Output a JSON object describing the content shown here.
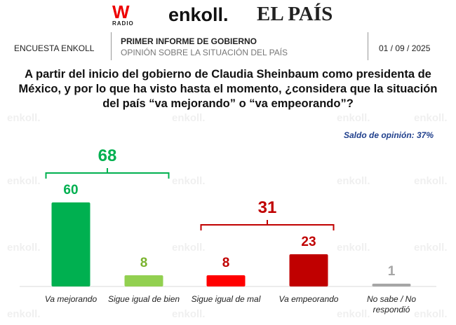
{
  "header": {
    "logos": {
      "wradio": "W",
      "wradio_sub": "RADIO",
      "enkoll": "enkoll.",
      "elpais": "EL PAÍS"
    },
    "left": "ENCUESTA ENKOLL",
    "title": "PRIMER INFORME DE GOBIERNO",
    "subtitle": "OPINIÓN SOBRE LA SITUACIÓN DEL PAÍS",
    "date": "01 / 09 / 2025"
  },
  "question": "A partir del inicio del gobierno de Claudia Sheinbaum como presidenta de México, y por lo que ha visto hasta el momento, ¿considera que la situación del país “va mejorando” o “va empeorando”?",
  "saldo": "Saldo de opinión: 37%",
  "watermark": "enkoll.",
  "chart_data": {
    "type": "bar",
    "title": "",
    "categories": [
      "Va mejorando",
      "Sigue igual de bien",
      "Sigue igual de mal",
      "Va empeorando",
      "No sabe / No respondió"
    ],
    "values": [
      60,
      8,
      8,
      23,
      1
    ],
    "colors": [
      "#00b050",
      "#92d050",
      "#ff0000",
      "#c00000",
      "#a6a6a6"
    ],
    "label_colors": [
      "#00b050",
      "#7ab32e",
      "#c00000",
      "#c00000",
      "#a6a6a6"
    ],
    "groups": [
      {
        "label": "68",
        "from": 0,
        "to": 1,
        "color": "#00b050"
      },
      {
        "label": "31",
        "from": 2,
        "to": 3,
        "color": "#c00000"
      }
    ],
    "ylim": [
      0,
      60
    ],
    "grid": false,
    "legend": "none"
  }
}
